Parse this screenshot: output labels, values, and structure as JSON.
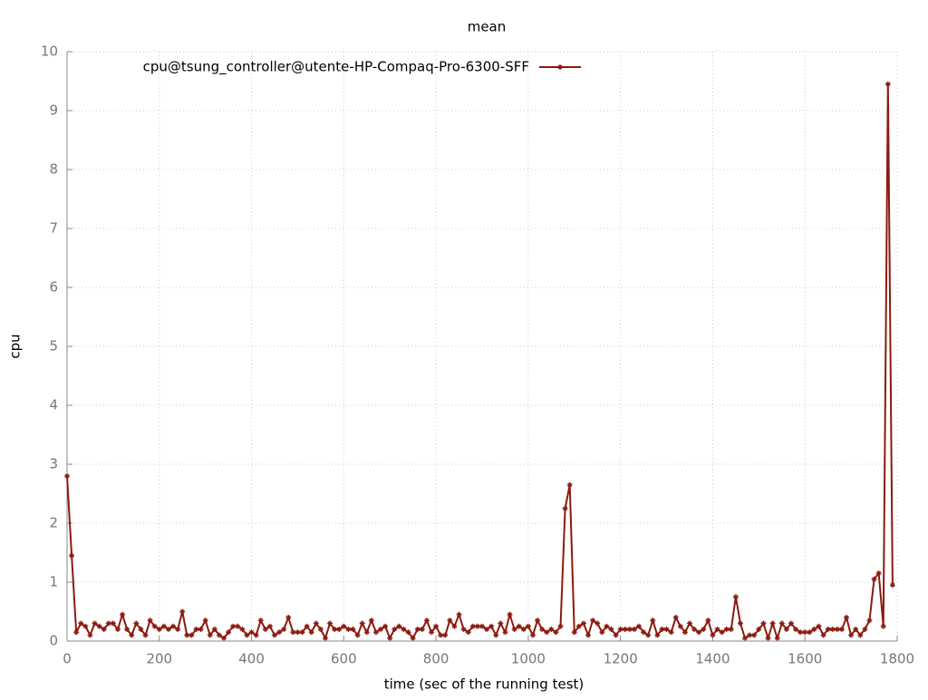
{
  "chart_data": {
    "type": "line",
    "title": "mean",
    "x_label": "time (sec of the running test)",
    "y_label": "cpu",
    "x": [
      0,
      10,
      20,
      30,
      40,
      50,
      60,
      70,
      80,
      90,
      100,
      110,
      120,
      130,
      140,
      150,
      160,
      170,
      180,
      190,
      200,
      210,
      220,
      230,
      240,
      250,
      260,
      270,
      280,
      290,
      300,
      310,
      320,
      330,
      340,
      350,
      360,
      370,
      380,
      390,
      400,
      410,
      420,
      430,
      440,
      450,
      460,
      470,
      480,
      490,
      500,
      510,
      520,
      530,
      540,
      550,
      560,
      570,
      580,
      590,
      600,
      610,
      620,
      630,
      640,
      650,
      660,
      670,
      680,
      690,
      700,
      710,
      720,
      730,
      740,
      750,
      760,
      770,
      780,
      790,
      800,
      810,
      820,
      830,
      840,
      850,
      860,
      870,
      880,
      890,
      900,
      910,
      920,
      930,
      940,
      950,
      960,
      970,
      980,
      990,
      1000,
      1010,
      1020,
      1030,
      1040,
      1050,
      1060,
      1070,
      1080,
      1090,
      1100,
      1110,
      1120,
      1130,
      1140,
      1150,
      1160,
      1170,
      1180,
      1190,
      1200,
      1210,
      1220,
      1230,
      1240,
      1250,
      1260,
      1270,
      1280,
      1290,
      1300,
      1310,
      1320,
      1330,
      1340,
      1350,
      1360,
      1370,
      1380,
      1390,
      1400,
      1410,
      1420,
      1430,
      1440,
      1450,
      1460,
      1470,
      1480,
      1490,
      1500,
      1510,
      1520,
      1530,
      1540,
      1550,
      1560,
      1570,
      1580,
      1590,
      1600,
      1610,
      1620,
      1630,
      1640,
      1650,
      1660,
      1670,
      1680,
      1690,
      1700,
      1710,
      1720,
      1730,
      1740,
      1750,
      1760,
      1770,
      1780,
      1790
    ],
    "series": [
      {
        "name": "cpu@tsung_controller@utente-HP-Compaq-Pro-6300-SFF",
        "color": "#8b1a0e",
        "values": [
          2.8,
          1.45,
          0.15,
          0.3,
          0.25,
          0.1,
          0.3,
          0.25,
          0.2,
          0.3,
          0.3,
          0.2,
          0.45,
          0.2,
          0.1,
          0.3,
          0.2,
          0.1,
          0.35,
          0.25,
          0.2,
          0.25,
          0.2,
          0.25,
          0.2,
          0.5,
          0.1,
          0.1,
          0.2,
          0.2,
          0.35,
          0.1,
          0.2,
          0.1,
          0.05,
          0.15,
          0.25,
          0.25,
          0.2,
          0.1,
          0.15,
          0.1,
          0.35,
          0.2,
          0.25,
          0.1,
          0.15,
          0.2,
          0.4,
          0.15,
          0.15,
          0.15,
          0.25,
          0.15,
          0.3,
          0.2,
          0.05,
          0.3,
          0.2,
          0.2,
          0.25,
          0.2,
          0.2,
          0.1,
          0.3,
          0.15,
          0.35,
          0.15,
          0.2,
          0.25,
          0.05,
          0.2,
          0.25,
          0.2,
          0.15,
          0.05,
          0.2,
          0.2,
          0.35,
          0.15,
          0.25,
          0.1,
          0.1,
          0.35,
          0.25,
          0.45,
          0.2,
          0.15,
          0.25,
          0.25,
          0.25,
          0.2,
          0.25,
          0.1,
          0.3,
          0.15,
          0.45,
          0.2,
          0.25,
          0.2,
          0.25,
          0.1,
          0.35,
          0.2,
          0.15,
          0.2,
          0.15,
          0.25,
          2.25,
          2.65,
          0.15,
          0.25,
          0.3,
          0.1,
          0.35,
          0.3,
          0.15,
          0.25,
          0.2,
          0.1,
          0.2,
          0.2,
          0.2,
          0.2,
          0.25,
          0.15,
          0.1,
          0.35,
          0.1,
          0.2,
          0.2,
          0.15,
          0.4,
          0.25,
          0.15,
          0.3,
          0.2,
          0.15,
          0.2,
          0.35,
          0.1,
          0.2,
          0.15,
          0.2,
          0.2,
          0.75,
          0.3,
          0.05,
          0.1,
          0.1,
          0.2,
          0.3,
          0.05,
          0.3,
          0.05,
          0.3,
          0.2,
          0.3,
          0.2,
          0.15,
          0.15,
          0.15,
          0.2,
          0.25,
          0.1,
          0.2,
          0.2,
          0.2,
          0.2,
          0.4,
          0.1,
          0.2,
          0.1,
          0.2,
          0.35,
          1.05,
          1.15,
          0.25,
          9.45,
          0.95
        ]
      }
    ],
    "xlim": [
      0,
      1800
    ],
    "xticks": [
      0,
      200,
      400,
      600,
      800,
      1000,
      1200,
      1400,
      1600,
      1800
    ],
    "ylim": [
      0,
      10
    ],
    "yticks": [
      0,
      1,
      2,
      3,
      4,
      5,
      6,
      7,
      8,
      9,
      10
    ],
    "grid": true,
    "legend_position": "top-left"
  }
}
